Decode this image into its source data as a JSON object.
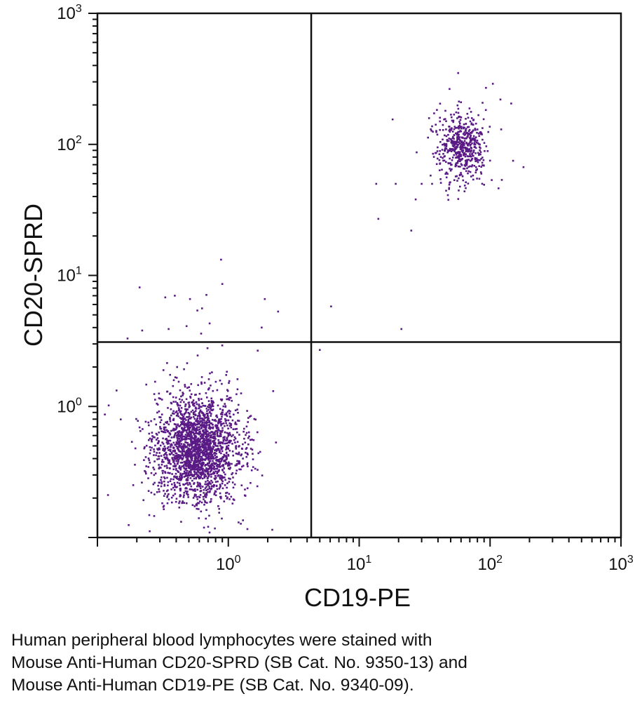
{
  "chart_data": {
    "type": "scatter",
    "x_scale": "log",
    "y_scale": "log",
    "xlabel": "CD19-PE",
    "ylabel": "CD20-SPRD",
    "xlim": [
      0.1,
      1000
    ],
    "ylim": [
      0.1,
      1000
    ],
    "x_ticks": [
      {
        "value": 1,
        "base": "10",
        "exp": "0"
      },
      {
        "value": 10,
        "base": "10",
        "exp": "1"
      },
      {
        "value": 100,
        "base": "10",
        "exp": "2"
      },
      {
        "value": 1000,
        "base": "10",
        "exp": "3"
      }
    ],
    "y_ticks": [
      {
        "value": 1,
        "base": "10",
        "exp": "0"
      },
      {
        "value": 10,
        "base": "10",
        "exp": "1"
      },
      {
        "value": 100,
        "base": "10",
        "exp": "2"
      },
      {
        "value": 1000,
        "base": "10",
        "exp": "3"
      }
    ],
    "quadrant_gate": {
      "x": 4.3,
      "y": 3.1
    },
    "point_color": "#5a1a86",
    "populations": [
      {
        "name": "CD19- CD20- lymphocytes (lower-left)",
        "count": 2200,
        "center": [
          0.58,
          0.48
        ],
        "spread_log10": [
          0.16,
          0.2
        ]
      },
      {
        "name": "CD19+ CD20+ B cells (upper-right)",
        "count": 560,
        "center": [
          60,
          95
        ],
        "spread_log10": [
          0.09,
          0.12
        ]
      }
    ],
    "scattered_points": [
      [
        0.21,
        8.1
      ],
      [
        0.33,
        6.8
      ],
      [
        0.39,
        7.0
      ],
      [
        0.51,
        6.6
      ],
      [
        0.63,
        5.6
      ],
      [
        0.68,
        7.1
      ],
      [
        0.58,
        5.4
      ],
      [
        0.88,
        13.2
      ],
      [
        0.9,
        8.6
      ],
      [
        1.9,
        6.6
      ],
      [
        2.4,
        5.3
      ],
      [
        1.8,
        4.0
      ],
      [
        0.72,
        4.3
      ],
      [
        0.48,
        4.1
      ],
      [
        0.35,
        3.9
      ],
      [
        0.22,
        3.8
      ],
      [
        0.17,
        3.3
      ],
      [
        0.62,
        3.6
      ],
      [
        6.1,
        5.8
      ],
      [
        5.0,
        2.7
      ],
      [
        14,
        27
      ],
      [
        21,
        3.9
      ],
      [
        18,
        155
      ],
      [
        13.5,
        50
      ],
      [
        19,
        50
      ],
      [
        25,
        22
      ],
      [
        27,
        38
      ],
      [
        30,
        50
      ],
      [
        105,
        290
      ],
      [
        93,
        270
      ],
      [
        120,
        220
      ],
      [
        145,
        205
      ],
      [
        150,
        75
      ],
      [
        180,
        67
      ],
      [
        57,
        350
      ]
    ]
  },
  "caption": {
    "line1": "Human peripheral blood lymphocytes were stained with",
    "line2": "Mouse Anti-Human CD20-SPRD (SB Cat. No. 9350-13) and",
    "line3": "Mouse Anti-Human CD19-PE (SB Cat. No. 9340-09)."
  }
}
